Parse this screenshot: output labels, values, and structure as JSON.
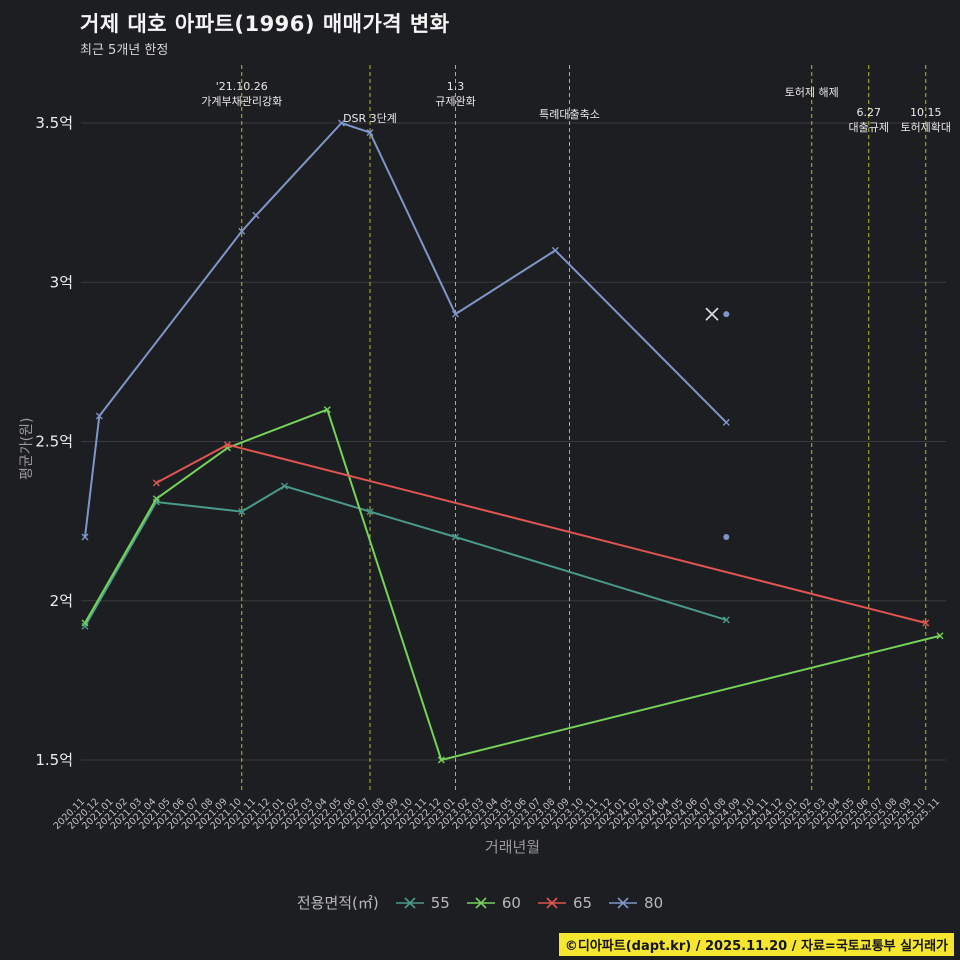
{
  "page": {
    "title": "거제 대호 아파트(1996) 매매가격 변화",
    "subtitle": "최근 5개년 한정",
    "attribution": "©디아파트(dapt.kr) / 2025.11.20 / 자료=국토교통부 실거래가"
  },
  "colors": {
    "background": "#1d1e21",
    "grid": "#3a3b3e",
    "event_line": "#b9b932",
    "footer_bg": "#f6e62f",
    "tick_text": "#c4c4c4",
    "annotation_text": "#e9e9e9"
  },
  "chart_data": {
    "type": "line",
    "title": "거제 대호 아파트(1996) 매매가격 변화",
    "subtitle": "최근 5개년 한정",
    "xlabel": "거래년월",
    "ylabel": "평균가(원)",
    "unit": "억",
    "ylim": [
      1.5,
      3.5
    ],
    "grid": true,
    "legend_position": "bottom",
    "legend_title": "전용면적(㎡)",
    "y_ticks": [
      {
        "value": 1.5,
        "label": "1.5억"
      },
      {
        "value": 2.0,
        "label": "2억"
      },
      {
        "value": 2.5,
        "label": "2.5억"
      },
      {
        "value": 3.0,
        "label": "3억"
      },
      {
        "value": 3.5,
        "label": "3.5억"
      }
    ],
    "x_labels": [
      "2020.11",
      "2020.12",
      "2021.01",
      "2021.02",
      "2021.03",
      "2021.04",
      "2021.05",
      "2021.06",
      "2021.07",
      "2021.08",
      "2021.09",
      "2021.10",
      "2021.11",
      "2021.12",
      "2022.01",
      "2022.02",
      "2022.03",
      "2022.04",
      "2022.05",
      "2022.06",
      "2022.07",
      "2022.08",
      "2022.09",
      "2022.10",
      "2022.11",
      "2022.12",
      "2023.01",
      "2023.02",
      "2023.03",
      "2023.04",
      "2023.05",
      "2023.06",
      "2023.07",
      "2023.08",
      "2023.09",
      "2023.10",
      "2023.11",
      "2023.12",
      "2024.01",
      "2024.02",
      "2024.03",
      "2024.04",
      "2024.05",
      "2024.06",
      "2024.07",
      "2024.08",
      "2024.09",
      "2024.10",
      "2024.11",
      "2024.12",
      "2025.01",
      "2025.02",
      "2025.03",
      "2025.04",
      "2025.05",
      "2025.06",
      "2025.07",
      "2025.08",
      "2025.09",
      "2025.10",
      "2025.11"
    ],
    "series": [
      {
        "name": "55",
        "color": "#4a998c",
        "points": [
          [
            "2020.11",
            1.92
          ],
          [
            "2021.04",
            2.31
          ],
          [
            "2021.10",
            2.28
          ],
          [
            "2022.01",
            2.36
          ],
          [
            "2022.07",
            2.28
          ],
          [
            "2023.01",
            2.2
          ],
          [
            "2024.08",
            1.94
          ]
        ]
      },
      {
        "name": "60",
        "color": "#76d25b",
        "points": [
          [
            "2020.11",
            1.93
          ],
          [
            "2021.04",
            2.32
          ],
          [
            "2021.09",
            2.48
          ],
          [
            "2022.04",
            2.6
          ],
          [
            "2022.12",
            1.5
          ],
          [
            "2025.11",
            1.89
          ]
        ]
      },
      {
        "name": "65",
        "color": "#e05451",
        "points": [
          [
            "2021.04",
            2.37
          ],
          [
            "2021.09",
            2.49
          ],
          [
            "2025.10",
            1.93
          ]
        ]
      },
      {
        "name": "80",
        "color": "#8095c8",
        "points": [
          [
            "2020.11",
            2.2
          ],
          [
            "2020.12",
            2.58
          ],
          [
            "2021.10",
            3.16
          ],
          [
            "2021.11",
            3.21
          ],
          [
            "2022.05",
            3.5
          ],
          [
            "2022.07",
            3.47
          ],
          [
            "2023.01",
            2.9
          ],
          [
            "2023.08",
            3.1
          ],
          [
            "2024.08",
            2.56
          ]
        ]
      }
    ],
    "isolated_points": [
      {
        "series": "80",
        "x": "2024.07",
        "value": 2.9,
        "marker": "x"
      },
      {
        "series": "80",
        "x": "2024.08",
        "value": 2.9,
        "marker": "dot"
      },
      {
        "series": "80",
        "x": "2024.08",
        "value": 2.2,
        "marker": "dot"
      }
    ],
    "annotations": [
      {
        "x": "2021.10",
        "lines": [
          "'21.10.26",
          "가계부채관리강화"
        ],
        "ty": 90
      },
      {
        "x": "2022.07",
        "lines": [
          "DSR 3단계"
        ],
        "ty": 122
      },
      {
        "x": "2023.01",
        "lines": [
          "1.3",
          "규제완화"
        ],
        "ty": 90
      },
      {
        "x": "2023.09",
        "lines": [
          "특례대출축소"
        ],
        "ty": 118
      },
      {
        "x": "2025.02",
        "lines": [
          "토허제 해제"
        ],
        "ty": 96
      },
      {
        "x": "2025.06",
        "lines": [
          "6.27",
          "대출규제"
        ],
        "ty": 116
      },
      {
        "x": "2025.10",
        "lines": [
          "10.15",
          "토허제확대"
        ],
        "ty": 116
      }
    ]
  }
}
